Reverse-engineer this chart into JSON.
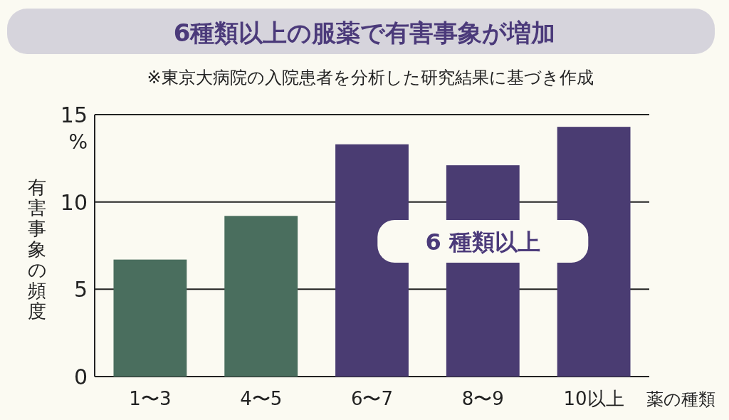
{
  "chart_data": {
    "type": "bar",
    "title": "6種類以上の服薬で有害事象が増加",
    "subtitle": "※東京大病院の入院患者を分析した研究結果に基づき作成",
    "categories": [
      "1〜3",
      "4〜5",
      "6〜7",
      "8〜9",
      "10以上"
    ],
    "values": [
      6.7,
      9.2,
      13.3,
      12.1,
      14.3
    ],
    "colors": [
      "#4a6e5e",
      "#4a6e5e",
      "#4a3c72",
      "#4a3c72",
      "#4a3c72"
    ],
    "xlabel": "薬の種類",
    "ylabel": "有害事象の頻度",
    "ylim": [
      0,
      15
    ],
    "yticks": [
      0,
      5,
      10,
      15
    ],
    "grid": "y",
    "annotations": [
      "%",
      "6 種類以上"
    ]
  }
}
